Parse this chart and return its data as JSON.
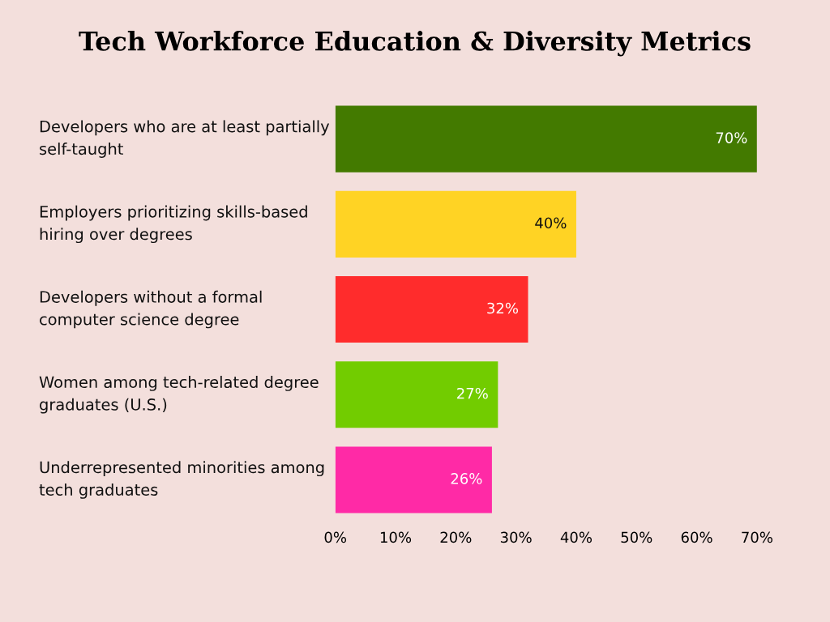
{
  "chart_data": {
    "type": "bar",
    "orientation": "horizontal",
    "title": "Tech Workforce Education & Diversity Metrics",
    "categories": [
      "Developers who are at least partially self-taught",
      "Employers prioritizing skills-based hiring over degrees",
      "Developers without a formal computer science degree",
      "Women among tech-related degree graduates (U.S.)",
      "Underrepresented minorities among tech graduates"
    ],
    "values": [
      70,
      40,
      32,
      27,
      26
    ],
    "colors": [
      "#437a00",
      "#ffd324",
      "#ff2c2c",
      "#72cc00",
      "#ff2aa6"
    ],
    "data_labels": true,
    "value_labels": [
      "70%",
      "40%",
      "32%",
      "27%",
      "26%"
    ],
    "xlim": [
      0,
      70
    ],
    "xticks": [
      {
        "value": 0,
        "label": "0%"
      },
      {
        "value": 10,
        "label": "10%"
      },
      {
        "value": 20,
        "label": "20%"
      },
      {
        "value": 30,
        "label": "30%"
      },
      {
        "value": 40,
        "label": "40%"
      },
      {
        "value": 50,
        "label": "50%"
      },
      {
        "value": 60,
        "label": "60%"
      },
      {
        "value": 70,
        "label": "70%"
      }
    ],
    "grid": false
  }
}
